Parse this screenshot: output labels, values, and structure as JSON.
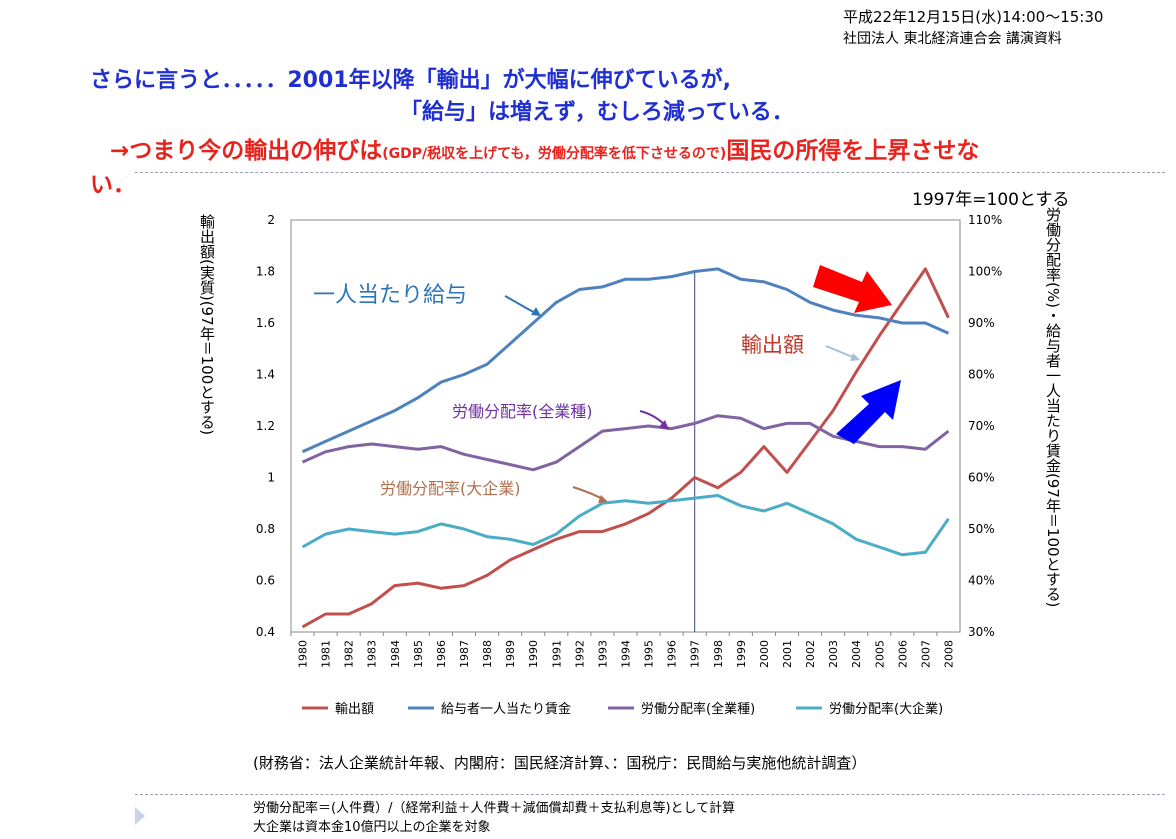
{
  "header": {
    "date": "平成22年12月15日(水)14:00～15:30",
    "org": "社団法人 東北経済連合会  講演資料",
    "line1": "さらに言うと．．．．．2001年以降「輸出」が大幅に伸びているが,",
    "line2": "「給与」は増えず，むしろ減っている．",
    "line3_main": "→つまり今の輸出の伸びは",
    "line3_small": "(GDP/税収を上げても，労働分配率を低下させるので)",
    "line3_end": "国民の所得を上昇させな",
    "line3_wrap": "い．"
  },
  "chart_data": {
    "type": "line",
    "x": [
      "1980",
      "1981",
      "1982",
      "1983",
      "1984",
      "1985",
      "1986",
      "1987",
      "1988",
      "1989",
      "1990",
      "1991",
      "1992",
      "1993",
      "1994",
      "1995",
      "1996",
      "1997",
      "1998",
      "1999",
      "2000",
      "2001",
      "2002",
      "2003",
      "2004",
      "2005",
      "2006",
      "2007",
      "2008"
    ],
    "y_left": {
      "label": "輸出額(実質)(97年＝100とする)",
      "ylim": [
        0.4,
        2
      ],
      "ticks": [
        "0.4",
        "0.6",
        "0.8",
        "1",
        "1.2",
        "1.4",
        "1.6",
        "1.8",
        "2"
      ]
    },
    "y_right": {
      "label": "労働分配率(%)・給与者一人当たり賃金(97年＝100とする)",
      "ylim": [
        30,
        110
      ],
      "ticks": [
        "30%",
        "40%",
        "50%",
        "60%",
        "70%",
        "80%",
        "90%",
        "100%",
        "110%"
      ]
    },
    "scale_note": "1997年=100とする",
    "reference_line_x": "1997",
    "legend_position": "bottom",
    "series": [
      {
        "name": "輸出額",
        "axis": "left",
        "color": "#c0504d",
        "values": [
          0.42,
          0.47,
          0.47,
          0.51,
          0.58,
          0.59,
          0.57,
          0.58,
          0.62,
          0.68,
          0.72,
          0.76,
          0.79,
          0.79,
          0.82,
          0.86,
          0.92,
          1.0,
          0.96,
          1.02,
          1.12,
          1.02,
          1.14,
          1.26,
          1.41,
          1.55,
          1.68,
          1.81,
          1.62
        ]
      },
      {
        "name": "給与者一人当たり賃金",
        "axis": "right",
        "color": "#4f81bd",
        "values": [
          65,
          67,
          69,
          71,
          73,
          75.5,
          78.5,
          80,
          82,
          86,
          90,
          94,
          96.5,
          97,
          98.5,
          98.5,
          99,
          100,
          100.5,
          98.5,
          98,
          96.5,
          94,
          92.5,
          91.5,
          91,
          90,
          90,
          88
        ]
      },
      {
        "name": "労働分配率(全業種)",
        "axis": "right",
        "color": "#8064a2",
        "values": [
          63,
          65,
          66,
          66.5,
          66,
          65.5,
          66,
          64.5,
          63.5,
          62.5,
          61.5,
          63,
          66,
          69,
          69.5,
          70,
          69.5,
          70.5,
          72,
          71.5,
          69.5,
          70.5,
          70.5,
          68,
          67,
          66,
          66,
          65.5,
          69
        ]
      },
      {
        "name": "労働分配率(大企業)",
        "axis": "right",
        "color": "#4bacc6",
        "values": [
          46.5,
          49,
          50,
          49.5,
          49,
          49.5,
          51,
          50,
          48.5,
          48,
          47,
          49,
          52.5,
          55,
          55.5,
          55,
          55.5,
          56,
          56.5,
          54.5,
          53.5,
          55,
          53,
          51,
          48,
          46.5,
          45,
          45.5,
          52
        ]
      }
    ],
    "annotations": [
      {
        "text": "一人当たり給与",
        "color": "#2e75b6"
      },
      {
        "text": "輸出額",
        "color": "#c0392b"
      },
      {
        "text": "労働分配率(全業種)",
        "color": "#7030a0"
      },
      {
        "text": "労働分配率(大企業)",
        "color": "#b07050"
      }
    ],
    "big_arrows": [
      {
        "name": "red-arrow",
        "color": "#ff0000"
      },
      {
        "name": "blue-arrow",
        "color": "#0000ff"
      }
    ]
  },
  "footer": {
    "source": "(財務省：法人企業統計年報、内閣府：国民経済計算、：国税庁：民間給与実施他統計調査）",
    "note1": "労働分配率＝(人件費）/（経常利益＋人件費＋減価償却費＋支払利息等)として計算",
    "note2": "大企業は資本金10億円以上の企業を対象"
  }
}
